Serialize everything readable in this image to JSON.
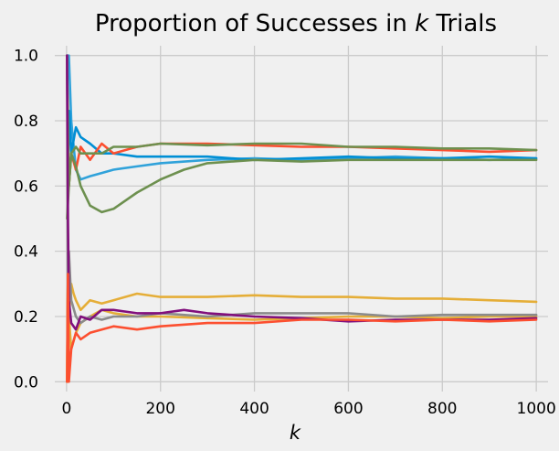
{
  "chart_data": {
    "type": "line",
    "title_prefix": "Proportion of Successes in ",
    "title_var": "k",
    "title_suffix": " Trials",
    "xlabel": "k",
    "ylabel": "",
    "xlim": [
      -25,
      1025
    ],
    "ylim": [
      -0.03,
      1.03
    ],
    "xticks": [
      0,
      200,
      400,
      600,
      800,
      1000
    ],
    "xtick_labels": [
      "0",
      "200",
      "400",
      "600",
      "800",
      "1000"
    ],
    "yticks": [
      0.0,
      0.2,
      0.4,
      0.6,
      0.8,
      1.0
    ],
    "ytick_labels": [
      "0.0",
      "0.2",
      "0.4",
      "0.6",
      "0.8",
      "1.0"
    ],
    "grid": true,
    "series": [
      {
        "color": "#30a2da",
        "x": [
          1,
          5,
          10,
          20,
          30,
          50,
          75,
          100,
          150,
          200,
          300,
          400,
          500,
          600,
          700,
          800,
          900,
          1000
        ],
        "y": [
          1.0,
          1.0,
          0.8,
          0.65,
          0.62,
          0.63,
          0.64,
          0.65,
          0.66,
          0.67,
          0.68,
          0.685,
          0.68,
          0.685,
          0.69,
          0.685,
          0.68,
          0.685
        ]
      },
      {
        "color": "#008fd5",
        "x": [
          1,
          3,
          6,
          10,
          20,
          30,
          50,
          75,
          100,
          150,
          200,
          300,
          400,
          500,
          600,
          700,
          800,
          900,
          1000
        ],
        "y": [
          1.0,
          0.67,
          0.83,
          0.7,
          0.78,
          0.75,
          0.73,
          0.7,
          0.7,
          0.69,
          0.69,
          0.69,
          0.68,
          0.685,
          0.69,
          0.685,
          0.685,
          0.69,
          0.685
        ]
      },
      {
        "color": "#fc4f30",
        "x": [
          1,
          3,
          5,
          10,
          20,
          30,
          50,
          75,
          100,
          150,
          200,
          300,
          400,
          500,
          600,
          700,
          800,
          900,
          1000
        ],
        "y": [
          1.0,
          0.67,
          0.6,
          0.7,
          0.65,
          0.72,
          0.68,
          0.73,
          0.7,
          0.72,
          0.73,
          0.73,
          0.725,
          0.72,
          0.72,
          0.715,
          0.71,
          0.705,
          0.71
        ]
      },
      {
        "color": "#6d904f",
        "x": [
          1,
          5,
          10,
          20,
          30,
          50,
          75,
          100,
          150,
          200,
          250,
          300,
          400,
          500,
          600,
          700,
          800,
          900,
          1000
        ],
        "y": [
          1.0,
          0.6,
          0.7,
          0.66,
          0.6,
          0.54,
          0.52,
          0.53,
          0.58,
          0.62,
          0.65,
          0.67,
          0.68,
          0.675,
          0.68,
          0.68,
          0.68,
          0.68,
          0.68
        ]
      },
      {
        "color": "#6d904f",
        "x": [
          1,
          5,
          10,
          20,
          30,
          50,
          75,
          100,
          150,
          200,
          300,
          400,
          500,
          600,
          700,
          800,
          900,
          1000
        ],
        "y": [
          0.5,
          0.6,
          0.7,
          0.72,
          0.7,
          0.7,
          0.7,
          0.72,
          0.72,
          0.73,
          0.725,
          0.73,
          0.73,
          0.72,
          0.72,
          0.715,
          0.715,
          0.71
        ]
      },
      {
        "color": "#e5ae38",
        "x": [
          1,
          3,
          5,
          10,
          15,
          20,
          30,
          50,
          75,
          100,
          150,
          200,
          300,
          400,
          500,
          600,
          700,
          800,
          900,
          1000
        ],
        "y": [
          0.0,
          0.33,
          0.2,
          0.3,
          0.27,
          0.25,
          0.22,
          0.25,
          0.24,
          0.25,
          0.27,
          0.26,
          0.26,
          0.265,
          0.26,
          0.26,
          0.255,
          0.255,
          0.25,
          0.245
        ]
      },
      {
        "color": "#e5ae38",
        "x": [
          1,
          3,
          5,
          10,
          20,
          30,
          50,
          75,
          100,
          150,
          200,
          300,
          400,
          500,
          600,
          700,
          800,
          900,
          1000
        ],
        "y": [
          0.0,
          0.33,
          0.2,
          0.1,
          0.15,
          0.18,
          0.2,
          0.22,
          0.21,
          0.2,
          0.2,
          0.195,
          0.19,
          0.195,
          0.2,
          0.2,
          0.195,
          0.2,
          0.2
        ]
      },
      {
        "color": "#8b8b8b",
        "x": [
          1,
          3,
          5,
          10,
          20,
          30,
          50,
          75,
          100,
          150,
          200,
          300,
          400,
          500,
          600,
          700,
          800,
          900,
          1000
        ],
        "y": [
          1.0,
          0.33,
          0.4,
          0.25,
          0.2,
          0.18,
          0.2,
          0.19,
          0.2,
          0.2,
          0.21,
          0.2,
          0.21,
          0.21,
          0.21,
          0.2,
          0.205,
          0.205,
          0.205
        ]
      },
      {
        "color": "#810f7c",
        "x": [
          1,
          3,
          5,
          10,
          20,
          30,
          50,
          75,
          100,
          150,
          200,
          250,
          300,
          400,
          500,
          600,
          700,
          800,
          900,
          1000
        ],
        "y": [
          1.0,
          0.5,
          0.25,
          0.18,
          0.16,
          0.2,
          0.19,
          0.22,
          0.22,
          0.21,
          0.21,
          0.22,
          0.21,
          0.2,
          0.195,
          0.185,
          0.19,
          0.19,
          0.19,
          0.195
        ]
      },
      {
        "color": "#fc4f30",
        "x": [
          1,
          3,
          5,
          10,
          20,
          30,
          50,
          75,
          100,
          150,
          200,
          300,
          400,
          500,
          600,
          700,
          800,
          900,
          1000
        ],
        "y": [
          0.0,
          0.33,
          0.0,
          0.1,
          0.15,
          0.13,
          0.15,
          0.16,
          0.17,
          0.16,
          0.17,
          0.18,
          0.18,
          0.19,
          0.19,
          0.185,
          0.19,
          0.185,
          0.19
        ]
      }
    ]
  }
}
